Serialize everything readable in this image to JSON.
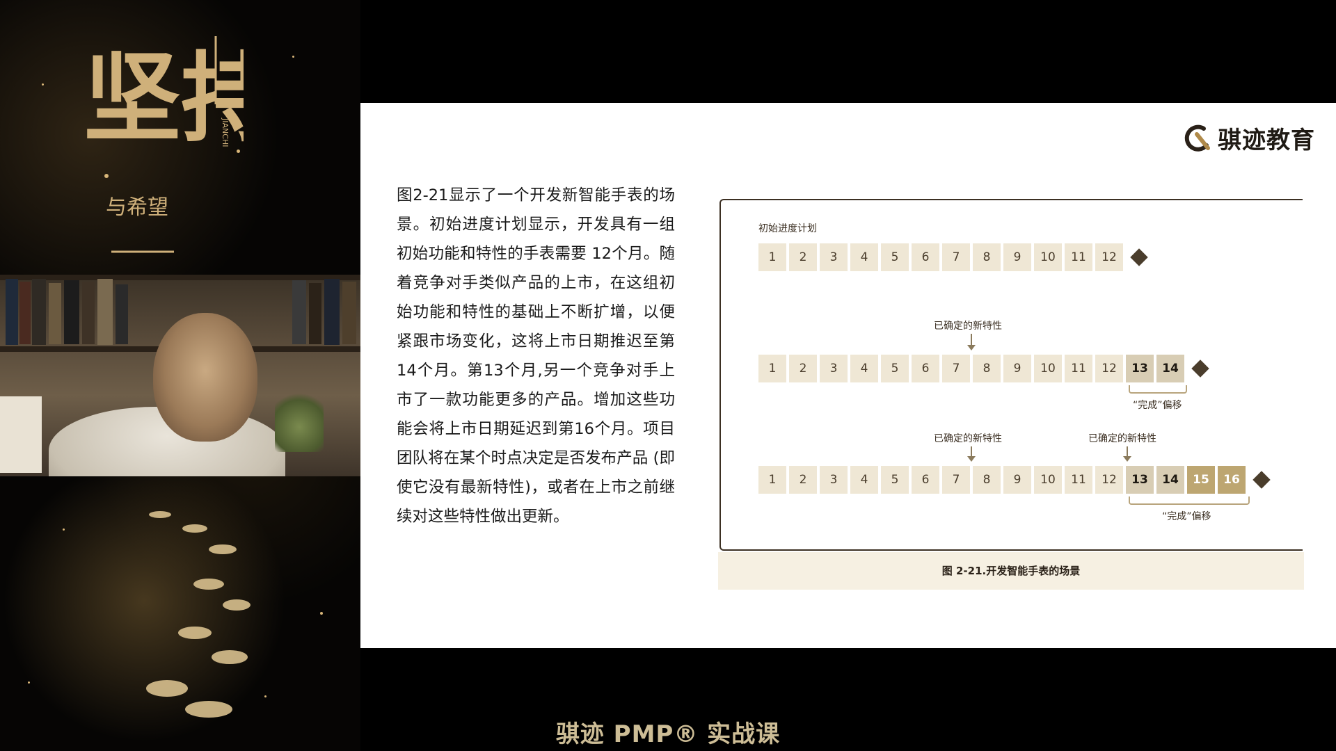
{
  "poster": {
    "title_main": "坚持",
    "title_pinyin": "JIANCHI",
    "title_sub": "与希望"
  },
  "brand": {
    "name": "骐迹教育",
    "logo_icon": "brand-logo-icon"
  },
  "slide": {
    "paragraph": "图2-21显示了一个开发新智能手表的场景。初始进度计划显示，开发具有一组初始功能和特性的手表需要 12个月。随着竞争对手类似产品的上市，在这组初始功能和特性的基础上不断扩增，以便紧跟市场变化，这将上市日期推迟至第14个月。第13个月,另一个竞争对手上市了一款功能更多的产品。增加这些功能会将上市日期延迟到第16个月。项目团队将在某个时点决定是否发布产品 (即使它没有最新特性)，或者在上市之前继续对这些特性做出更新。"
  },
  "figure": {
    "initial_plan_label": "初始进度计划",
    "row1": [
      "1",
      "2",
      "3",
      "4",
      "5",
      "6",
      "7",
      "8",
      "9",
      "10",
      "11",
      "12"
    ],
    "row2": [
      "1",
      "2",
      "3",
      "4",
      "5",
      "6",
      "7",
      "8",
      "9",
      "10",
      "11",
      "12",
      "13",
      "14"
    ],
    "row3": [
      "1",
      "2",
      "3",
      "4",
      "5",
      "6",
      "7",
      "8",
      "9",
      "10",
      "11",
      "12",
      "13",
      "14",
      "15",
      "16"
    ],
    "feature_label_1": "已确定的新特性",
    "feature_label_2": "已确定的新特性",
    "feature_label_3": "已确定的新特性",
    "offset_label_1": "“完成”偏移",
    "offset_label_2": "“完成”偏移",
    "caption": "图 2-21.开发智能手表的场景",
    "colors": {
      "base_cell": "#efe7d5",
      "added_cell": "#d8cdb4",
      "late_cell": "#bda671",
      "milestone": "#4a3d2c"
    }
  },
  "footer": {
    "course_title": "骐迹 PMP® 实战课"
  }
}
